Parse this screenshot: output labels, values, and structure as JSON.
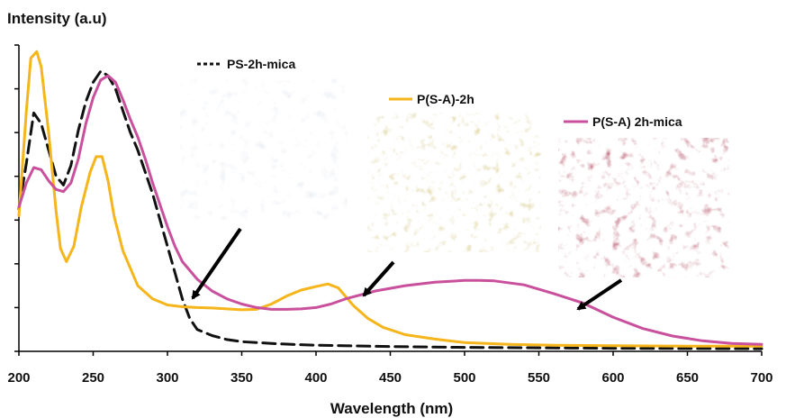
{
  "chart_data": {
    "type": "line",
    "ylabel": "Intensity (a.u)",
    "xlabel": "Wavelength (nm)",
    "xlim": [
      200,
      700
    ],
    "ylim": [
      0,
      7
    ],
    "x_ticks": [
      200,
      250,
      300,
      350,
      400,
      450,
      500,
      550,
      600,
      650,
      700
    ],
    "y_tick_count": 7,
    "y_tick_labels_shown": false,
    "grid": false,
    "series": [
      {
        "name": "PS-2h-mica",
        "color": "#111111",
        "style": "dashed",
        "swatch": "photo-white",
        "points": [
          [
            200,
            3.25
          ],
          [
            205,
            4.3
          ],
          [
            210,
            5.45
          ],
          [
            215,
            5.2
          ],
          [
            220,
            4.6
          ],
          [
            225,
            4.0
          ],
          [
            230,
            3.8
          ],
          [
            235,
            4.25
          ],
          [
            240,
            5.05
          ],
          [
            245,
            5.7
          ],
          [
            250,
            6.15
          ],
          [
            255,
            6.4
          ],
          [
            260,
            6.3
          ],
          [
            265,
            6.0
          ],
          [
            270,
            5.5
          ],
          [
            275,
            5.0
          ],
          [
            280,
            4.6
          ],
          [
            290,
            3.6
          ],
          [
            300,
            2.4
          ],
          [
            305,
            1.8
          ],
          [
            310,
            1.2
          ],
          [
            315,
            0.75
          ],
          [
            320,
            0.5
          ],
          [
            330,
            0.36
          ],
          [
            340,
            0.27
          ],
          [
            350,
            0.22
          ],
          [
            375,
            0.17
          ],
          [
            400,
            0.14
          ],
          [
            450,
            0.11
          ],
          [
            500,
            0.09
          ],
          [
            600,
            0.07
          ],
          [
            700,
            0.06
          ]
        ]
      },
      {
        "name": "P(S-A)-2h",
        "color": "#f5b51b",
        "style": "solid",
        "swatch": "photo-yellow",
        "points": [
          [
            200,
            3.1
          ],
          [
            205,
            5.5
          ],
          [
            208,
            6.7
          ],
          [
            212,
            6.85
          ],
          [
            215,
            6.5
          ],
          [
            220,
            5.0
          ],
          [
            225,
            3.2
          ],
          [
            228,
            2.35
          ],
          [
            232,
            2.05
          ],
          [
            237,
            2.4
          ],
          [
            242,
            3.3
          ],
          [
            248,
            4.1
          ],
          [
            252,
            4.45
          ],
          [
            256,
            4.45
          ],
          [
            260,
            3.9
          ],
          [
            264,
            3.1
          ],
          [
            270,
            2.3
          ],
          [
            280,
            1.5
          ],
          [
            290,
            1.2
          ],
          [
            300,
            1.06
          ],
          [
            310,
            1.02
          ],
          [
            320,
            1.0
          ],
          [
            330,
            0.99
          ],
          [
            340,
            0.97
          ],
          [
            350,
            0.95
          ],
          [
            360,
            0.96
          ],
          [
            370,
            1.08
          ],
          [
            380,
            1.26
          ],
          [
            390,
            1.4
          ],
          [
            400,
            1.48
          ],
          [
            408,
            1.54
          ],
          [
            415,
            1.45
          ],
          [
            425,
            1.05
          ],
          [
            435,
            0.75
          ],
          [
            445,
            0.55
          ],
          [
            460,
            0.38
          ],
          [
            480,
            0.28
          ],
          [
            500,
            0.2
          ],
          [
            530,
            0.16
          ],
          [
            560,
            0.14
          ],
          [
            600,
            0.13
          ],
          [
            650,
            0.12
          ],
          [
            700,
            0.12
          ]
        ]
      },
      {
        "name": "P(S-A) 2h-mica",
        "color": "#c8509c",
        "style": "solid",
        "swatch": "photo-pink",
        "points": [
          [
            200,
            3.3
          ],
          [
            205,
            3.85
          ],
          [
            210,
            4.2
          ],
          [
            215,
            4.15
          ],
          [
            220,
            3.9
          ],
          [
            225,
            3.7
          ],
          [
            230,
            3.65
          ],
          [
            235,
            3.85
          ],
          [
            240,
            4.4
          ],
          [
            245,
            5.2
          ],
          [
            250,
            5.8
          ],
          [
            255,
            6.2
          ],
          [
            260,
            6.3
          ],
          [
            265,
            6.15
          ],
          [
            270,
            5.75
          ],
          [
            275,
            5.3
          ],
          [
            280,
            4.9
          ],
          [
            285,
            4.4
          ],
          [
            290,
            3.85
          ],
          [
            300,
            2.85
          ],
          [
            305,
            2.4
          ],
          [
            310,
            2.05
          ],
          [
            320,
            1.65
          ],
          [
            330,
            1.38
          ],
          [
            340,
            1.2
          ],
          [
            350,
            1.08
          ],
          [
            360,
            1.0
          ],
          [
            370,
            0.96
          ],
          [
            380,
            0.96
          ],
          [
            390,
            0.97
          ],
          [
            400,
            1.0
          ],
          [
            410,
            1.08
          ],
          [
            420,
            1.2
          ],
          [
            440,
            1.38
          ],
          [
            460,
            1.5
          ],
          [
            480,
            1.58
          ],
          [
            500,
            1.62
          ],
          [
            510,
            1.62
          ],
          [
            520,
            1.61
          ],
          [
            540,
            1.52
          ],
          [
            560,
            1.32
          ],
          [
            580,
            1.1
          ],
          [
            600,
            0.78
          ],
          [
            620,
            0.52
          ],
          [
            640,
            0.35
          ],
          [
            660,
            0.24
          ],
          [
            680,
            0.18
          ],
          [
            700,
            0.16
          ]
        ]
      }
    ]
  }
}
